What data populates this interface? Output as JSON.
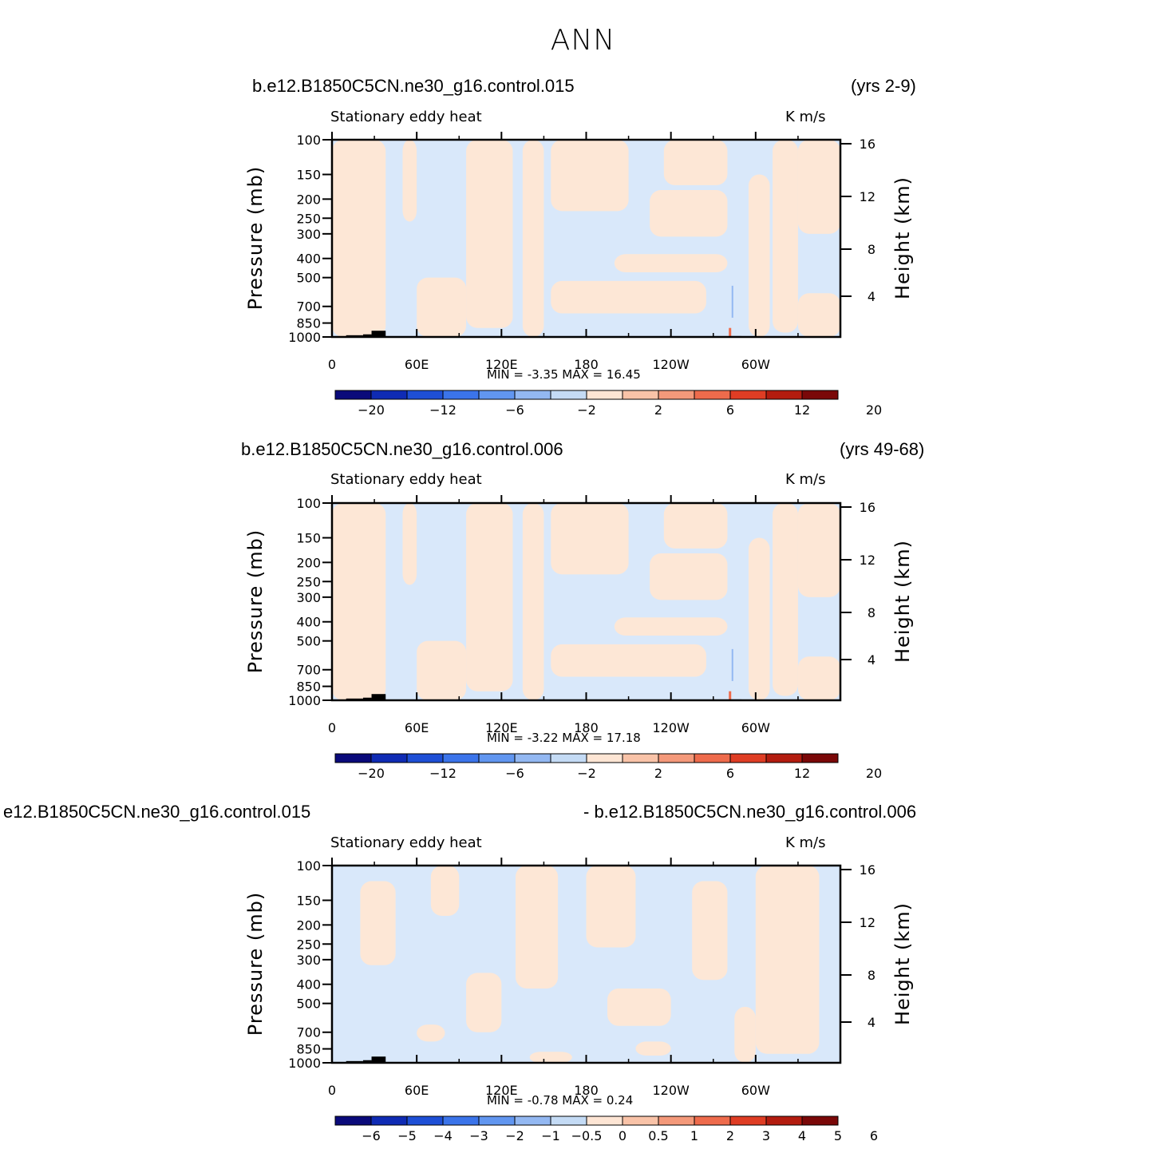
{
  "page": {
    "title": "ANN"
  },
  "colors": {
    "diverging_scale": [
      "#0a0a7a",
      "#0f2bb4",
      "#1e4fd6",
      "#3b74ea",
      "#6196f0",
      "#93b8f2",
      "#c4dbf5",
      "#fde5d4",
      "#f9c3a8",
      "#f4997a",
      "#ee6b4c",
      "#df3d24",
      "#b31c0f",
      "#7a0808"
    ],
    "neutral_neg": "#d9e8fa",
    "neutral_pos": "#fde7d6",
    "topography": "#000000"
  },
  "panels": [
    {
      "case_left": "b.e12.B1850C5CN.ne30_g16.control.015",
      "case_right": "(yrs 2-9)",
      "variable": "Stationary eddy heat",
      "units": "K m/s",
      "ylabel_left": "Pressure (mb)",
      "ylabel_right": "Height (km)",
      "stats": "MIN =   -3.35   MAX =   16.45",
      "colorbar_labels": [
        "-20",
        "-12",
        "-6",
        "-2",
        "2",
        "6",
        "12",
        "20"
      ]
    },
    {
      "case_left": "b.e12.B1850C5CN.ne30_g16.control.006",
      "case_right": "(yrs 49-68)",
      "variable": "Stationary eddy heat",
      "units": "K m/s",
      "ylabel_left": "Pressure (mb)",
      "ylabel_right": "Height (km)",
      "stats": "MIN =   -3.22   MAX =   17.18",
      "colorbar_labels": [
        "-20",
        "-12",
        "-6",
        "-2",
        "2",
        "6",
        "12",
        "20"
      ]
    },
    {
      "case_left": "e12.B1850C5CN.ne30_g16.control.015",
      "case_right": "- b.e12.B1850C5CN.ne30_g16.control.006",
      "variable": "Stationary eddy heat",
      "units": "K m/s",
      "ylabel_left": "Pressure (mb)",
      "ylabel_right": "Height (km)",
      "stats": "MIN =   -0.78   MAX =    0.24",
      "colorbar_labels": [
        "-6",
        "-5",
        "-4",
        "-3",
        "-2",
        "-1",
        "-0.5",
        "0",
        "0.5",
        "1",
        "2",
        "3",
        "4",
        "5",
        "6"
      ]
    }
  ],
  "chart_data": [
    {
      "type": "heatmap",
      "title": "Stationary eddy heat",
      "units": "K m/s",
      "xticklabels": [
        "0",
        "60E",
        "120E",
        "180",
        "120W",
        "60W"
      ],
      "yticklabels_left": [
        "100",
        "150",
        "200",
        "250",
        "300",
        "400",
        "500",
        "700",
        "850",
        "1000"
      ],
      "yticklabels_right": [
        "16",
        "12",
        "8",
        "4"
      ],
      "xlim": [
        0,
        360
      ],
      "ylim": [
        1000,
        100
      ],
      "yscale": "log",
      "min": -3.35,
      "max": 16.45,
      "levels": [
        -20,
        -16,
        -12,
        -8,
        -6,
        -4,
        -2,
        0,
        2,
        4,
        6,
        8,
        12,
        16,
        20
      ]
    },
    {
      "type": "heatmap",
      "title": "Stationary eddy heat",
      "units": "K m/s",
      "xticklabels": [
        "0",
        "60E",
        "120E",
        "180",
        "120W",
        "60W"
      ],
      "yticklabels_left": [
        "100",
        "150",
        "200",
        "250",
        "300",
        "400",
        "500",
        "700",
        "850",
        "1000"
      ],
      "yticklabels_right": [
        "16",
        "12",
        "8",
        "4"
      ],
      "xlim": [
        0,
        360
      ],
      "ylim": [
        1000,
        100
      ],
      "yscale": "log",
      "min": -3.22,
      "max": 17.18,
      "levels": [
        -20,
        -16,
        -12,
        -8,
        -6,
        -4,
        -2,
        0,
        2,
        4,
        6,
        8,
        12,
        16,
        20
      ]
    },
    {
      "type": "heatmap",
      "title": "Stationary eddy heat",
      "units": "K m/s",
      "xticklabels": [
        "0",
        "60E",
        "120E",
        "180",
        "120W",
        "60W"
      ],
      "yticklabels_left": [
        "100",
        "150",
        "200",
        "250",
        "300",
        "400",
        "500",
        "700",
        "850",
        "1000"
      ],
      "yticklabels_right": [
        "16",
        "12",
        "8",
        "4"
      ],
      "xlim": [
        0,
        360
      ],
      "ylim": [
        1000,
        100
      ],
      "yscale": "log",
      "min": -0.78,
      "max": 0.24,
      "levels": [
        -6,
        -5,
        -4,
        -3,
        -2,
        -1,
        -0.5,
        0,
        0.5,
        1,
        2,
        3,
        4,
        5,
        6
      ]
    }
  ]
}
